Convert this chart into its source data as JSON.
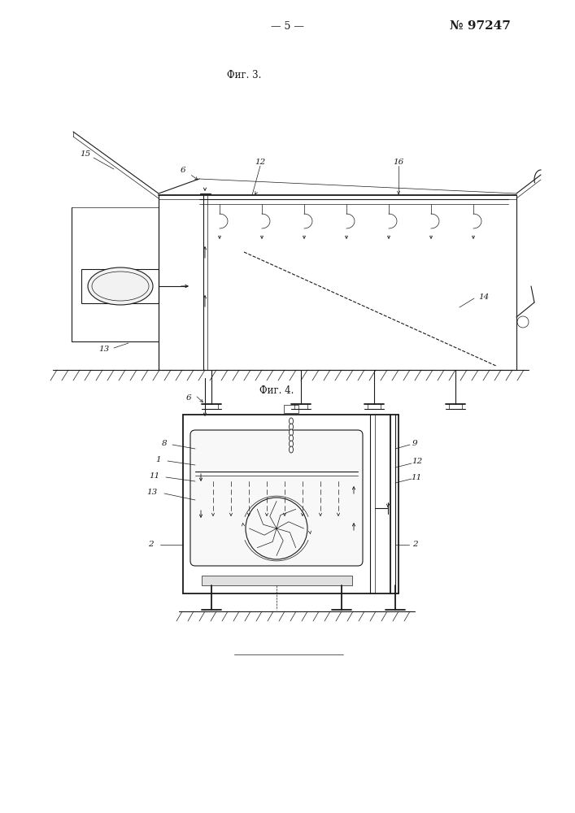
{
  "page_number": "— 5 —",
  "patent_number": "№ 97247",
  "fig3_label": "Фиг. 3.",
  "fig4_label": "Фиг. 4.",
  "bg_color": "#ffffff",
  "line_color": "#1a1a1a"
}
